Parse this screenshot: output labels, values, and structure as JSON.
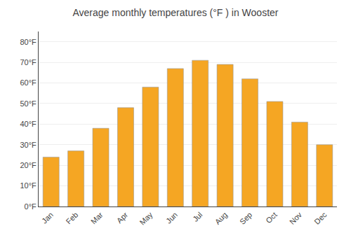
{
  "chart_data": {
    "type": "bar",
    "title": "Average monthly temperatures (°F ) in Wooster",
    "categories": [
      "Jan",
      "Feb",
      "Mar",
      "Apr",
      "May",
      "Jun",
      "Jul",
      "Aug",
      "Sep",
      "Oct",
      "Nov",
      "Dec"
    ],
    "values": [
      24,
      27,
      38,
      48,
      58,
      67,
      71,
      69,
      62,
      51,
      41,
      30
    ],
    "color": "#F5A623",
    "ylim": [
      0,
      85
    ],
    "yticks": [
      {
        "value": 0,
        "label": "0°F"
      },
      {
        "value": 10,
        "label": "10°F"
      },
      {
        "value": 20,
        "label": "20°F"
      },
      {
        "value": 30,
        "label": "30°F"
      },
      {
        "value": 40,
        "label": "40°F"
      },
      {
        "value": 50,
        "label": "50°F"
      },
      {
        "value": 60,
        "label": "60°F"
      },
      {
        "value": 70,
        "label": "70°F"
      },
      {
        "value": 80,
        "label": "80°F"
      }
    ],
    "grid": true
  }
}
